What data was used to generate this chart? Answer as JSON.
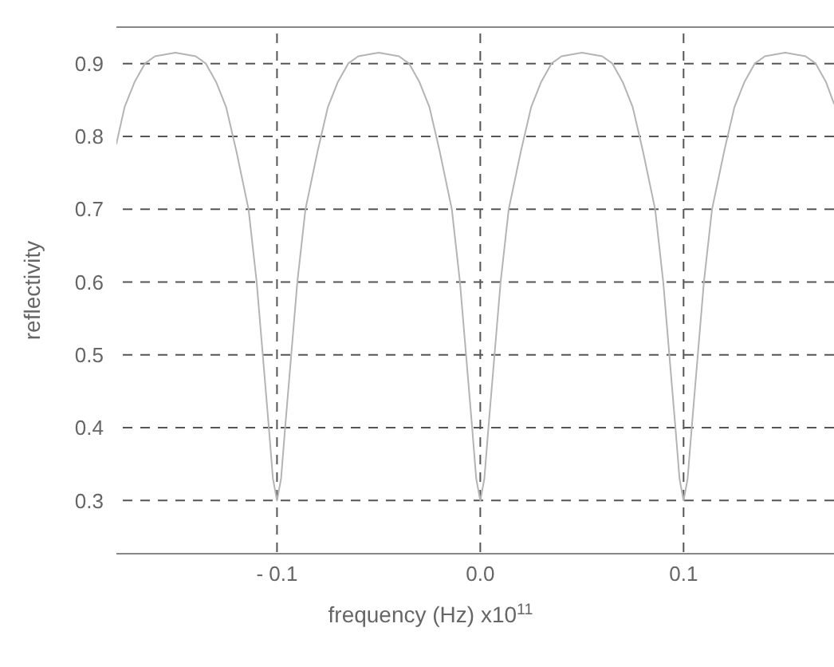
{
  "chart_data": {
    "type": "line",
    "xlabel": "frequency (Hz) x10$^{11}$",
    "ylabel": "reflectivity",
    "x": [
      -0.179,
      -0.175,
      -0.17,
      -0.165,
      -0.16,
      -0.15,
      -0.14,
      -0.135,
      -0.13,
      -0.125,
      -0.12,
      -0.114,
      -0.11,
      -0.107,
      -0.104,
      -0.102,
      -0.1,
      -0.098,
      -0.096,
      -0.093,
      -0.09,
      -0.086,
      -0.08,
      -0.075,
      -0.07,
      -0.065,
      -0.06,
      -0.05,
      -0.04,
      -0.035,
      -0.03,
      -0.025,
      -0.02,
      -0.014,
      -0.01,
      -0.007,
      -0.004,
      -0.002,
      0,
      0.002,
      0.004,
      0.007,
      0.01,
      0.014,
      0.02,
      0.025,
      0.03,
      0.035,
      0.04,
      0.05,
      0.06,
      0.065,
      0.07,
      0.075,
      0.08,
      0.086,
      0.09,
      0.093,
      0.096,
      0.098,
      0.1,
      0.102,
      0.104,
      0.107,
      0.11,
      0.114,
      0.12,
      0.125,
      0.13,
      0.135,
      0.14,
      0.15,
      0.16,
      0.165,
      0.17,
      0.174
    ],
    "series": [
      {
        "color": "#b4b4b4",
        "values": [
          0.79,
          0.84,
          0.875,
          0.9,
          0.91,
          0.915,
          0.91,
          0.9,
          0.875,
          0.84,
          0.78,
          0.7,
          0.6,
          0.5,
          0.4,
          0.33,
          0.3,
          0.33,
          0.4,
          0.5,
          0.6,
          0.7,
          0.78,
          0.84,
          0.875,
          0.9,
          0.91,
          0.915,
          0.91,
          0.9,
          0.875,
          0.84,
          0.78,
          0.7,
          0.6,
          0.5,
          0.4,
          0.33,
          0.3,
          0.33,
          0.4,
          0.5,
          0.6,
          0.7,
          0.78,
          0.84,
          0.875,
          0.9,
          0.91,
          0.915,
          0.91,
          0.9,
          0.875,
          0.84,
          0.78,
          0.7,
          0.6,
          0.5,
          0.4,
          0.33,
          0.3,
          0.33,
          0.4,
          0.5,
          0.6,
          0.7,
          0.78,
          0.84,
          0.875,
          0.9,
          0.91,
          0.915,
          0.91,
          0.9,
          0.875,
          0.845
        ]
      }
    ],
    "xlim": [
      -0.179,
      0.174
    ],
    "xticks": [
      {
        "value": -0.1,
        "label": "- 0.1"
      },
      {
        "value": 0,
        "label": "0.0"
      },
      0.1
    ],
    "ylim": [
      0.227,
      0.95
    ],
    "yticks": [
      0.3,
      0.4,
      0.5,
      0.6,
      0.7,
      0.8,
      0.9
    ],
    "grid": true,
    "legend": false,
    "marker": "none",
    "line_style": "solid"
  }
}
